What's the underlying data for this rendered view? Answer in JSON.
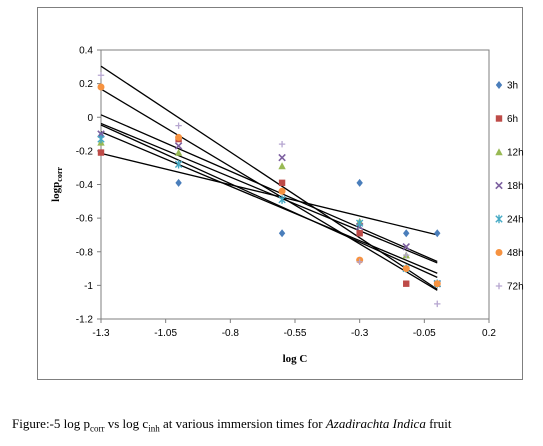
{
  "chart_data": {
    "type": "scatter",
    "xlabel": "log C",
    "ylabel_main": "logp",
    "ylabel_sub": "corr",
    "xlim": [
      -1.3,
      0.2
    ],
    "ylim": [
      -1.2,
      0.4
    ],
    "xticks": [
      -1.3,
      -1.05,
      -0.8,
      -0.55,
      -0.3,
      -0.05,
      0.2
    ],
    "xtick_labels": [
      "-1.3",
      "-1.05",
      "-0.8",
      "-0.55",
      "-0.3",
      "-0.05",
      "0.2"
    ],
    "yticks": [
      0.4,
      0.2,
      0,
      -0.2,
      -0.4,
      -0.6,
      -0.8,
      -1,
      -1.2
    ],
    "ytick_labels": [
      "0.4",
      "0.2",
      "0",
      "-0.2",
      "-0.4",
      "-0.6",
      "-0.8",
      "-1",
      "-1.2"
    ],
    "x": [
      -1.3,
      -1.0,
      -0.6,
      -0.3,
      -0.12,
      0.0
    ],
    "series": [
      {
        "name": "3h",
        "color": "#4a7ebb",
        "marker": "diamond",
        "values": [
          -0.11,
          -0.39,
          -0.69,
          -0.39,
          -0.69,
          -0.69
        ]
      },
      {
        "name": "6h",
        "color": "#be4b48",
        "marker": "square",
        "values": [
          -0.21,
          -0.13,
          -0.39,
          -0.69,
          -0.99,
          -0.99
        ]
      },
      {
        "name": "12h",
        "color": "#98b954",
        "marker": "triangle",
        "values": [
          -0.15,
          -0.21,
          -0.29,
          -0.62,
          -0.82,
          -0.99
        ]
      },
      {
        "name": "18h",
        "color": "#7d60a0",
        "marker": "x",
        "values": [
          -0.1,
          -0.17,
          -0.24,
          -0.65,
          -0.77,
          -0.99
        ]
      },
      {
        "name": "24h",
        "color": "#46aac5",
        "marker": "star",
        "values": [
          -0.13,
          -0.28,
          -0.49,
          -0.63,
          -0.9,
          -0.99
        ]
      },
      {
        "name": "48h",
        "color": "#f69240",
        "marker": "circle",
        "values": [
          0.18,
          -0.12,
          -0.44,
          -0.85,
          -0.9,
          -0.99
        ]
      },
      {
        "name": "72h",
        "color": "#b6a6d0",
        "marker": "plus",
        "values": [
          0.25,
          -0.05,
          -0.16,
          -0.86,
          -0.82,
          -1.11
        ]
      }
    ],
    "trendlines": true,
    "legend_position": "right",
    "grid": false
  },
  "caption": {
    "prefix": "Figure:-5 log p",
    "sub1": "corr",
    "mid": " vs log c",
    "sub2": "inh",
    "tail": " at various immersion times for ",
    "italic": "Azadirachta Indica",
    "end": " fruit"
  }
}
